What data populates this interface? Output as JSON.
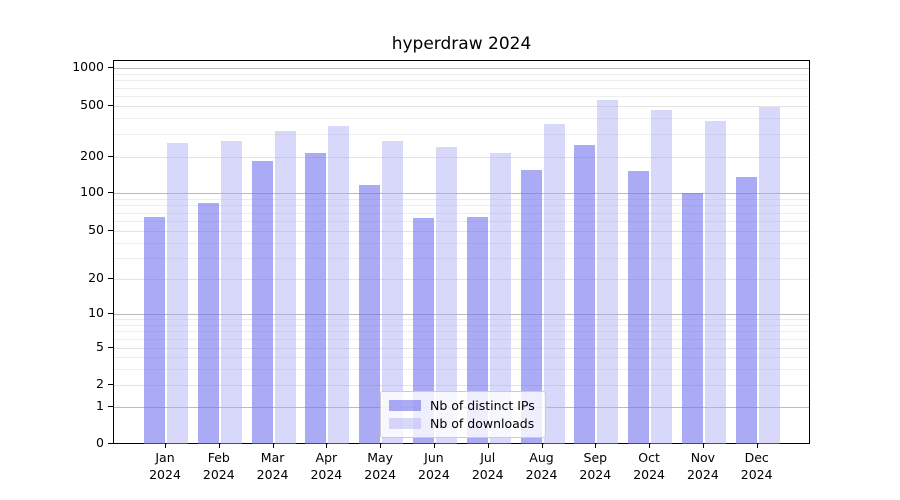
{
  "chart_data": {
    "type": "bar",
    "title": "hyperdraw 2024",
    "categories": [
      "Jan 2024",
      "Feb 2024",
      "Mar 2024",
      "Apr 2024",
      "May 2024",
      "Jun 2024",
      "Jul 2024",
      "Aug 2024",
      "Sep 2024",
      "Oct 2024",
      "Nov 2024",
      "Dec 2024"
    ],
    "series": [
      {
        "name": "Nb of distinct IPs",
        "color": "#7171ee",
        "alpha": 0.6,
        "values": [
          65,
          84,
          184,
          213,
          117,
          63,
          64,
          155,
          250,
          152,
          100,
          137
        ]
      },
      {
        "name": "Nb of downloads",
        "color": "#a8a8f4",
        "alpha": 0.45,
        "values": [
          255,
          268,
          318,
          352,
          266,
          238,
          214,
          364,
          555,
          468,
          380,
          490
        ]
      }
    ],
    "yscale": "symlog",
    "ylim": [
      0,
      1000
    ],
    "y_ticks": [
      0,
      1,
      2,
      5,
      10,
      20,
      50,
      100,
      200,
      500,
      1000
    ],
    "grid": true,
    "legend_position": "lower center",
    "colors": {
      "major_grid": "#bbbbbb",
      "minor_grid": "#ededed",
      "labeled_grid": "#e3e3e3"
    }
  }
}
